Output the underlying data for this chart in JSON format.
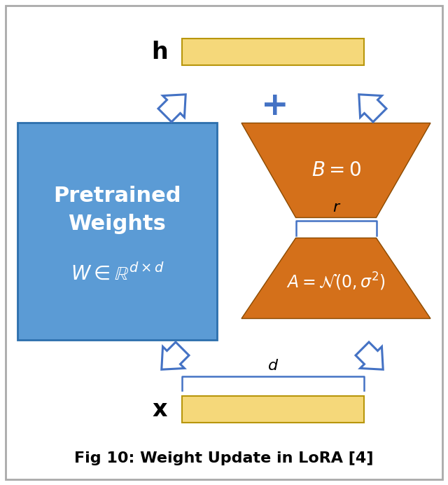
{
  "bg_color": "#ffffff",
  "border_color": "#aaaaaa",
  "blue_color": "#5b9bd5",
  "orange_color": "#d4701a",
  "yellow_color": "#f5d87a",
  "arrow_color": "#4472c4",
  "title": "Fig 10: Weight Update in LoRA [4]",
  "h_label": "h",
  "x_label": "x",
  "r_label": "r",
  "d_label": "d",
  "B_text": "$B = 0$",
  "A_text": "$A = \\mathcal{N}(0,\\sigma^2)$",
  "W_text": "$W \\in \\mathbb{R}^{d\\times d}$",
  "pretrained_line1": "Pretrained",
  "pretrained_line2": "Weights",
  "figw": 6.4,
  "figh": 6.92,
  "dpi": 100
}
